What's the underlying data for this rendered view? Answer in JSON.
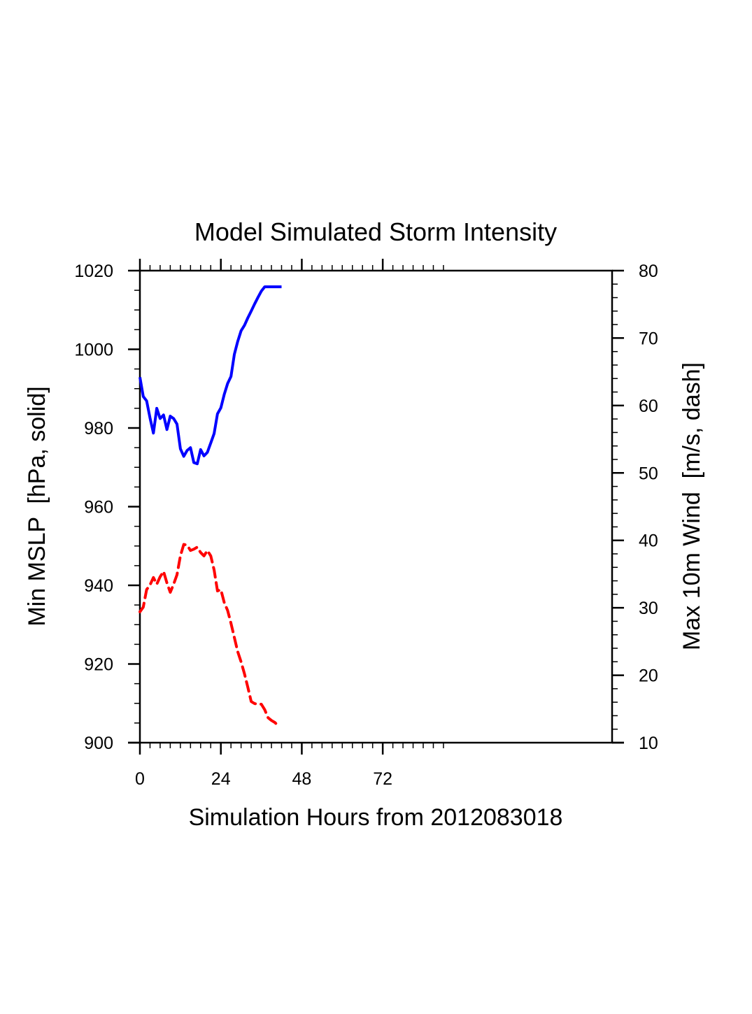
{
  "chart_data": {
    "type": "line",
    "title": "Model Simulated Storm Intensity",
    "xlabel": "Simulation Hours from 2012083018",
    "ylabel_left": "Min MSLP  [hPa, solid]",
    "ylabel_right": "Max 10m Wind  [m/s, dash]",
    "xlim": [
      0,
      140
    ],
    "ylim_left": [
      900,
      1020
    ],
    "ylim_right": [
      10,
      80
    ],
    "x_major_ticks": [
      0,
      24,
      48,
      72
    ],
    "x_minor_step": 3,
    "x_minor_max": 90,
    "x_tick_labels": [
      "0",
      "24",
      "48",
      "72"
    ],
    "y_left_major_ticks": [
      900,
      920,
      940,
      960,
      980,
      1000,
      1020
    ],
    "y_left_tick_labels": [
      "900",
      "920",
      "940",
      "960",
      "980",
      "1000",
      "1020"
    ],
    "y_left_minor_step": 5,
    "y_right_major_ticks": [
      10,
      20,
      30,
      40,
      50,
      60,
      70,
      80
    ],
    "y_right_tick_labels": [
      "10",
      "20",
      "30",
      "40",
      "50",
      "60",
      "70",
      "80"
    ],
    "y_right_minor_step": 2,
    "grid": false,
    "series": [
      {
        "name": "Min MSLP",
        "axis": "left",
        "style": "solid",
        "color": "#0000ff",
        "x": [
          0,
          1,
          2,
          3,
          4,
          5,
          6,
          7,
          8,
          9,
          10,
          11,
          12,
          13,
          14,
          15,
          16,
          17,
          18,
          19,
          20,
          21,
          22,
          23,
          24,
          25,
          26,
          27,
          28,
          29,
          30,
          31,
          32,
          33,
          34,
          35,
          36,
          37,
          38,
          39,
          40,
          41,
          42
        ],
        "values": [
          992.9,
          988.0,
          986.9,
          982.5,
          978.7,
          985.0,
          982.4,
          983.3,
          979.6,
          983.0,
          982.4,
          981.0,
          974.7,
          972.8,
          974.3,
          975.0,
          971.2,
          970.9,
          974.5,
          972.9,
          973.8,
          976.2,
          978.6,
          983.6,
          985.1,
          988.5,
          991.3,
          993.1,
          998.7,
          1002.0,
          1004.7,
          1006.1,
          1008.0,
          1009.7,
          1011.5,
          1013.2,
          1014.8,
          1015.9,
          1015.9,
          1015.9,
          1015.9,
          1015.9,
          1015.9
        ]
      },
      {
        "name": "Max 10m Wind",
        "axis": "right",
        "style": "dash",
        "color": "#ff0000",
        "x": [
          0,
          1,
          2,
          3,
          4,
          5,
          6,
          7,
          8,
          9,
          10,
          11,
          12,
          13,
          14,
          15,
          16,
          17,
          18,
          19,
          20,
          21,
          22,
          23,
          24,
          25,
          26,
          27,
          28,
          29,
          30,
          31,
          32,
          33,
          34,
          35,
          36,
          37,
          38,
          39,
          40,
          41
        ],
        "values": [
          29.4,
          30.1,
          32.7,
          33.4,
          34.5,
          33.5,
          34.6,
          35.4,
          33.7,
          32.3,
          33.5,
          34.9,
          37.7,
          39.4,
          39.3,
          38.5,
          38.7,
          39.0,
          38.2,
          37.7,
          38.5,
          37.7,
          35.6,
          32.5,
          32.7,
          30.8,
          29.6,
          27.7,
          25.6,
          23.5,
          22.0,
          20.2,
          18.2,
          16.1,
          15.8,
          15.7,
          15.7,
          14.9,
          13.7,
          13.3,
          13.0,
          12.5
        ]
      }
    ]
  }
}
